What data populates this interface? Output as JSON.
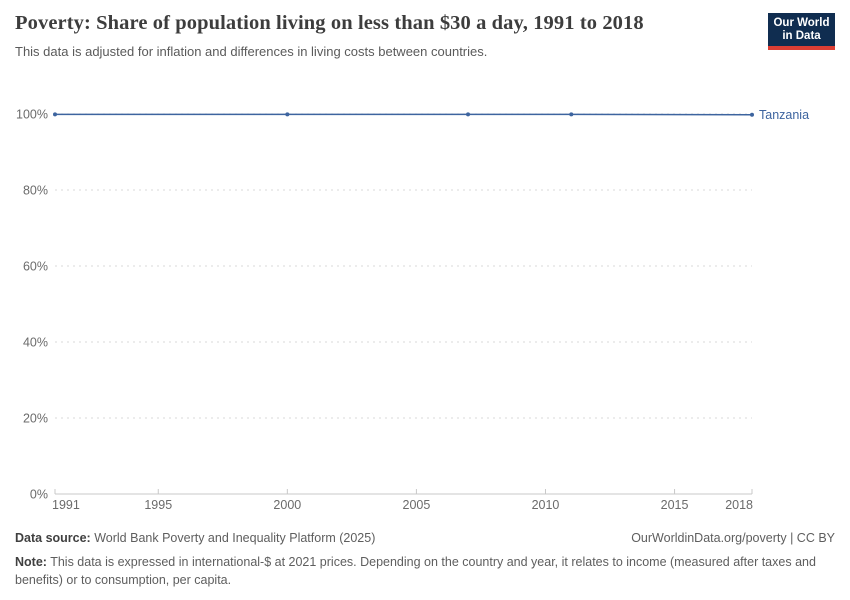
{
  "header": {
    "title": "Poverty: Share of population living on less than $30 a day, 1991 to 2018",
    "subtitle": "This data is adjusted for inflation and differences in living costs between countries."
  },
  "logo": {
    "line1": "Our World",
    "line2": "in Data",
    "bg_color": "#102d50",
    "bar_color": "#dc3e34"
  },
  "chart_data": {
    "type": "line",
    "title": "Poverty: Share of population living on less than $30 a day, 1991 to 2018",
    "xlabel": "",
    "ylabel": "",
    "xlim": [
      1991,
      2018
    ],
    "ylim": [
      0,
      100
    ],
    "x": [
      1991,
      2000,
      2007,
      2011,
      2018
    ],
    "series": [
      {
        "name": "Tanzania",
        "values": [
          99.9,
          99.9,
          99.9,
          99.9,
          99.8
        ],
        "color": "#3d649f"
      }
    ],
    "xticks": [
      1991,
      1995,
      2000,
      2005,
      2010,
      2015,
      2018
    ],
    "yticks": [
      {
        "value": 0,
        "label": "0%"
      },
      {
        "value": 20,
        "label": "20%"
      },
      {
        "value": 40,
        "label": "40%"
      },
      {
        "value": 60,
        "label": "60%"
      },
      {
        "value": 80,
        "label": "80%"
      },
      {
        "value": 100,
        "label": "100%"
      }
    ],
    "grid": "horizontal-dashed",
    "legend_position": "end-of-line-label",
    "axis_color": "#c8c8c8",
    "grid_color": "#d9d9d9",
    "tick_label_color": "#6b6b6b"
  },
  "footer": {
    "source_label": "Data source:",
    "source_text": "World Bank Poverty and Inequality Platform (2025)",
    "link": "OurWorldinData.org/poverty | CC BY",
    "note_label": "Note:",
    "note_text": "This data is expressed in international-$ at 2021 prices. Depending on the country and year, it relates to income (measured after taxes and benefits) or to consumption, per capita."
  }
}
